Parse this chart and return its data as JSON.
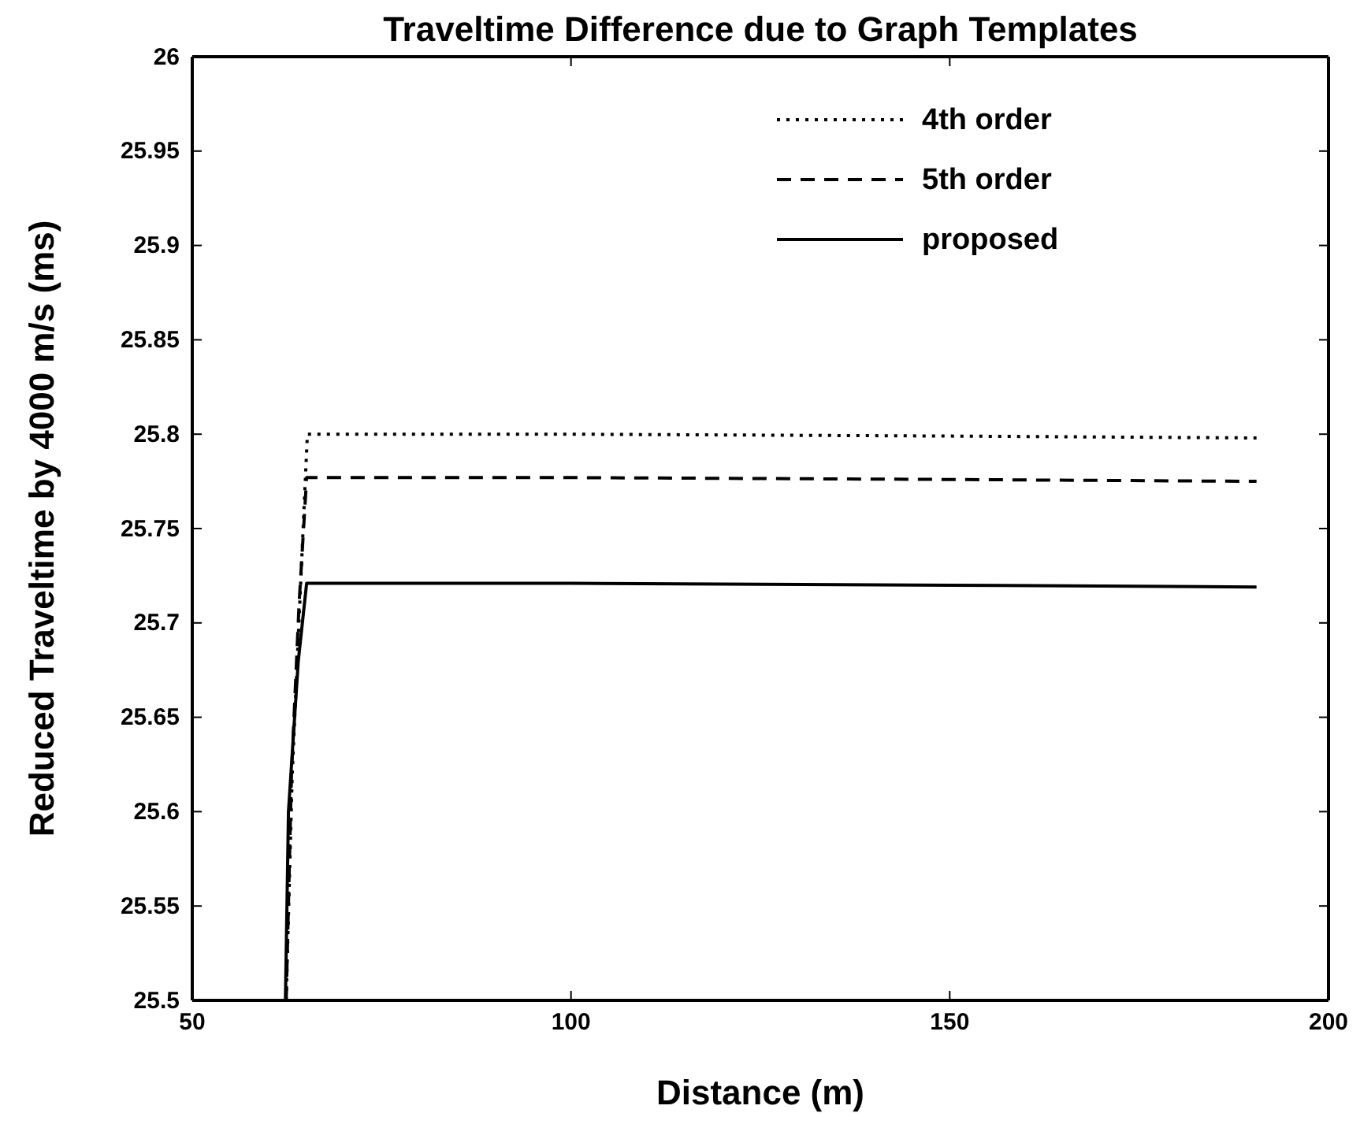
{
  "chart_data": {
    "type": "line",
    "title": "Traveltime Difference due to Graph Templates",
    "xlabel": "Distance (m)",
    "ylabel": "Reduced Traveltime by 4000 m/s (ms)",
    "xlim": [
      50,
      200
    ],
    "xticks": [
      50,
      100,
      150,
      200
    ],
    "ylim": [
      25.5,
      26
    ],
    "yticks": [
      25.5,
      25.55,
      25.6,
      25.65,
      25.7,
      25.75,
      25.8,
      25.85,
      25.9,
      25.95,
      26
    ],
    "grid": false,
    "legend": "top right",
    "marker": "none",
    "series": [
      {
        "name": "4th order",
        "color": "#000000",
        "line_style": "dotted",
        "x": [
          62.4,
          63.2,
          64.3,
          65.2,
          100,
          150,
          190.5
        ],
        "values": [
          25.5,
          25.62,
          25.72,
          25.8,
          25.8,
          25.799,
          25.798
        ]
      },
      {
        "name": "5th order",
        "color": "#000000",
        "line_style": "dashed",
        "x": [
          62.4,
          63.1,
          64.1,
          65.1,
          100,
          150,
          190.5
        ],
        "values": [
          25.5,
          25.62,
          25.71,
          25.777,
          25.777,
          25.776,
          25.775
        ]
      },
      {
        "name": "proposed",
        "color": "#000000",
        "line_style": "solid",
        "x": [
          62.3,
          62.7,
          64.0,
          65.1,
          100,
          150,
          190.5
        ],
        "values": [
          25.5,
          25.6,
          25.68,
          25.721,
          25.721,
          25.72,
          25.719
        ]
      }
    ]
  }
}
